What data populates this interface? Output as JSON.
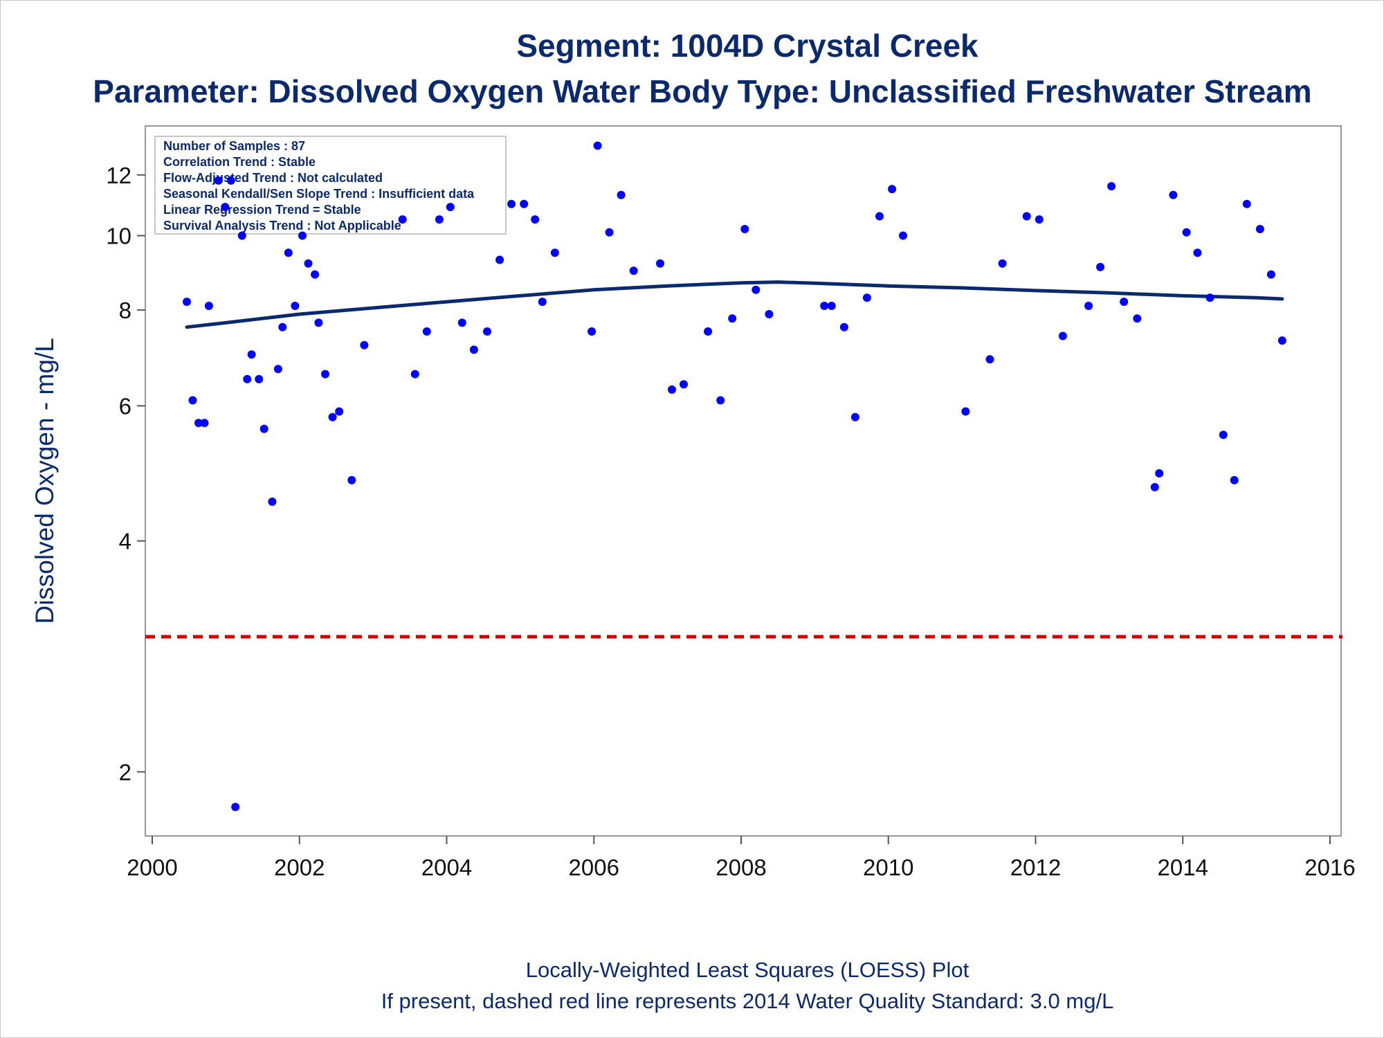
{
  "titles": {
    "line1": "Segment: 1004D  Crystal Creek",
    "line2": "Parameter: Dissolved Oxygen   Water Body Type: Unclassified Freshwater Stream"
  },
  "footnotes": {
    "line1": "Locally-Weighted Least Squares (LOESS) Plot",
    "line2": "If present, dashed red line represents 2014 Water Quality Standard: 3.0 mg/L"
  },
  "stats_box": [
    "Number of Samples : 87",
    "Correlation Trend : Stable",
    "Flow-Adjusted Trend : Not calculated",
    "Seasonal Kendall/Sen Slope Trend : Insufficient data",
    "Linear Regression Trend = Stable",
    "Survival Analysis Trend : Not Applicable"
  ],
  "colors": {
    "points": "#0000ff",
    "loess": "#0b2a6e",
    "standard": "#cc0000",
    "text": "#0b2a6e",
    "frame": "#999999"
  },
  "chart_data": {
    "type": "scatter",
    "title": "Segment: 1004D  Crystal Creek",
    "subtitle": "Parameter: Dissolved Oxygen   Water Body Type: Unclassified Freshwater Stream",
    "xlabel": "",
    "ylabel": "Dissolved Oxygen - mg/L",
    "y_scale": "log",
    "xlim": [
      2000,
      2016
    ],
    "ylim": [
      1.65,
      13.9
    ],
    "x_ticks": [
      2000,
      2002,
      2004,
      2006,
      2008,
      2010,
      2012,
      2014,
      2016
    ],
    "y_ticks": [
      2,
      4,
      6,
      8,
      10,
      12
    ],
    "grid": false,
    "standard_line": {
      "value": 3.0,
      "style": "dashed"
    },
    "series": [
      {
        "type": "scatter",
        "points": [
          [
            2000.47,
            8.2
          ],
          [
            2000.55,
            6.1
          ],
          [
            2000.63,
            5.7
          ],
          [
            2000.71,
            5.7
          ],
          [
            2000.77,
            8.1
          ],
          [
            2000.9,
            11.8
          ],
          [
            2000.99,
            10.9
          ],
          [
            2001.07,
            11.8
          ],
          [
            2001.13,
            1.8
          ],
          [
            2001.22,
            10.0
          ],
          [
            2001.29,
            6.5
          ],
          [
            2001.35,
            7.0
          ],
          [
            2001.45,
            6.5
          ],
          [
            2001.52,
            5.6
          ],
          [
            2001.63,
            4.5
          ],
          [
            2001.71,
            6.7
          ],
          [
            2001.77,
            7.6
          ],
          [
            2001.85,
            9.5
          ],
          [
            2001.94,
            8.1
          ],
          [
            2002.04,
            10.0
          ],
          [
            2002.12,
            9.2
          ],
          [
            2002.21,
            8.9
          ],
          [
            2002.26,
            7.7
          ],
          [
            2002.35,
            6.6
          ],
          [
            2002.45,
            5.8
          ],
          [
            2002.54,
            5.9
          ],
          [
            2002.71,
            4.8
          ],
          [
            2002.88,
            7.2
          ],
          [
            2003.4,
            10.5
          ],
          [
            2003.57,
            6.6
          ],
          [
            2003.73,
            7.5
          ],
          [
            2003.9,
            10.5
          ],
          [
            2004.05,
            10.9
          ],
          [
            2004.21,
            7.7
          ],
          [
            2004.37,
            7.1
          ],
          [
            2004.55,
            7.5
          ],
          [
            2004.72,
            9.3
          ],
          [
            2004.88,
            11.0
          ],
          [
            2005.05,
            11.0
          ],
          [
            2005.2,
            10.5
          ],
          [
            2005.3,
            8.2
          ],
          [
            2005.47,
            9.5
          ],
          [
            2005.97,
            7.5
          ],
          [
            2006.05,
            13.1
          ],
          [
            2006.21,
            10.1
          ],
          [
            2006.37,
            11.3
          ],
          [
            2006.54,
            9.0
          ],
          [
            2006.9,
            9.2
          ],
          [
            2007.06,
            6.3
          ],
          [
            2007.22,
            6.4
          ],
          [
            2007.55,
            7.5
          ],
          [
            2007.72,
            6.1
          ],
          [
            2007.88,
            7.8
          ],
          [
            2008.05,
            10.2
          ],
          [
            2008.2,
            8.5
          ],
          [
            2008.38,
            7.9
          ],
          [
            2009.13,
            8.1
          ],
          [
            2009.23,
            8.1
          ],
          [
            2009.4,
            7.6
          ],
          [
            2009.55,
            5.8
          ],
          [
            2009.71,
            8.3
          ],
          [
            2009.88,
            10.6
          ],
          [
            2010.05,
            11.5
          ],
          [
            2010.2,
            10.0
          ],
          [
            2011.05,
            5.9
          ],
          [
            2011.38,
            6.9
          ],
          [
            2011.55,
            9.2
          ],
          [
            2011.88,
            10.6
          ],
          [
            2012.05,
            10.5
          ],
          [
            2012.37,
            7.4
          ],
          [
            2012.72,
            8.1
          ],
          [
            2012.88,
            9.1
          ],
          [
            2013.03,
            11.6
          ],
          [
            2013.2,
            8.2
          ],
          [
            2013.38,
            7.8
          ],
          [
            2013.62,
            4.7
          ],
          [
            2013.68,
            4.9
          ],
          [
            2013.87,
            11.3
          ],
          [
            2014.05,
            10.1
          ],
          [
            2014.2,
            9.5
          ],
          [
            2014.37,
            8.3
          ],
          [
            2014.55,
            5.5
          ],
          [
            2014.7,
            4.8
          ],
          [
            2014.87,
            11.0
          ],
          [
            2015.05,
            10.2
          ],
          [
            2015.2,
            8.9
          ],
          [
            2015.35,
            7.3
          ]
        ]
      },
      {
        "type": "line",
        "points": [
          [
            2000.47,
            7.6
          ],
          [
            2001.0,
            7.7
          ],
          [
            2002.0,
            7.9
          ],
          [
            2003.0,
            8.05
          ],
          [
            2004.0,
            8.2
          ],
          [
            2005.0,
            8.35
          ],
          [
            2006.0,
            8.5
          ],
          [
            2007.0,
            8.6
          ],
          [
            2008.0,
            8.68
          ],
          [
            2008.5,
            8.7
          ],
          [
            2009.0,
            8.67
          ],
          [
            2010.0,
            8.6
          ],
          [
            2011.0,
            8.55
          ],
          [
            2012.0,
            8.48
          ],
          [
            2013.0,
            8.42
          ],
          [
            2014.0,
            8.35
          ],
          [
            2015.0,
            8.3
          ],
          [
            2015.35,
            8.27
          ]
        ]
      }
    ]
  }
}
